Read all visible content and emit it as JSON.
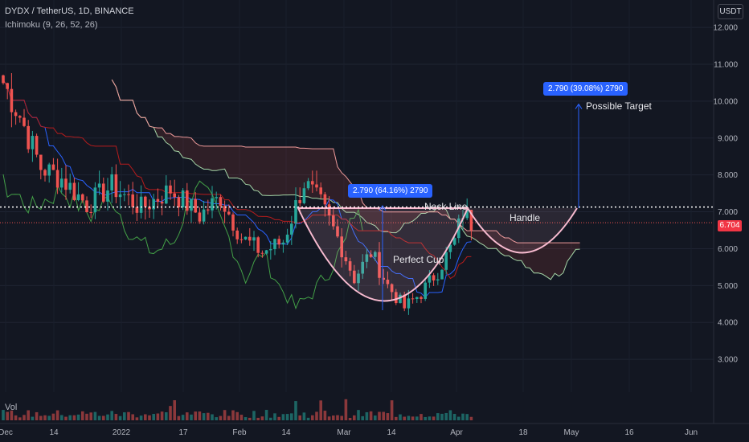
{
  "header": {
    "symbol": "DYDX / TetherUS, 1D, BINANCE",
    "indicator": "Ichimoku (9, 26, 52, 26)",
    "currency": "USDT",
    "volume_label": "Vol"
  },
  "current_price": "6.704",
  "annotations": {
    "neck_line": "Neck Line",
    "handle": "Handle",
    "cup": "Perfect Cup",
    "target": "Possible Target",
    "measure_cup": "2.790 (64.16%) 2790",
    "measure_target": "2.790 (39.08%) 2790"
  },
  "colors": {
    "background": "#131722",
    "up": "#26a69a",
    "down": "#ef5350",
    "tenkan": "#2962ff",
    "kijun": "#b71c1c",
    "chikou": "#43a047",
    "span_a": "#a5d6a7",
    "span_b": "#ef9a9a",
    "pattern": "#f8bbd0",
    "measure": "#2962ff"
  },
  "chart_data": {
    "type": "candlestick",
    "title": "DYDX / TetherUS, 1D, BINANCE",
    "ylim": [
      2.0,
      12.7
    ],
    "y_ticks": [
      "12.000",
      "11.000",
      "10.000",
      "9.000",
      "8.000",
      "7.000",
      "6.000",
      "5.000",
      "4.000",
      "3.000"
    ],
    "x_ticks": [
      "Dec",
      "14",
      "2022",
      "17",
      "Feb",
      "14",
      "Mar",
      "14",
      "Apr",
      "18",
      "May",
      "16",
      "Jun"
    ],
    "neck_line": 7.13,
    "target": 9.92,
    "keypoints": [
      {
        "day": 0,
        "price": 10.5
      },
      {
        "day": 4,
        "price": 9.6
      },
      {
        "day": 9,
        "price": 8.2
      },
      {
        "day": 14,
        "price": 7.9
      },
      {
        "day": 20,
        "price": 7.2
      },
      {
        "day": 26,
        "price": 7.7
      },
      {
        "day": 33,
        "price": 7.1
      },
      {
        "day": 40,
        "price": 7.6
      },
      {
        "day": 47,
        "price": 6.9
      },
      {
        "day": 52,
        "price": 7.4
      },
      {
        "day": 57,
        "price": 6.3
      },
      {
        "day": 62,
        "price": 5.9
      },
      {
        "day": 67,
        "price": 6.2
      },
      {
        "day": 72,
        "price": 7.8
      },
      {
        "day": 76,
        "price": 7.2
      },
      {
        "day": 80,
        "price": 6.3
      },
      {
        "day": 84,
        "price": 5.2
      },
      {
        "day": 88,
        "price": 5.9
      },
      {
        "day": 92,
        "price": 5.0
      },
      {
        "day": 96,
        "price": 4.4
      },
      {
        "day": 100,
        "price": 4.8
      },
      {
        "day": 104,
        "price": 5.4
      },
      {
        "day": 108,
        "price": 6.2
      },
      {
        "day": 110,
        "price": 7.0
      },
      {
        "day": 112,
        "price": 6.7
      }
    ]
  }
}
